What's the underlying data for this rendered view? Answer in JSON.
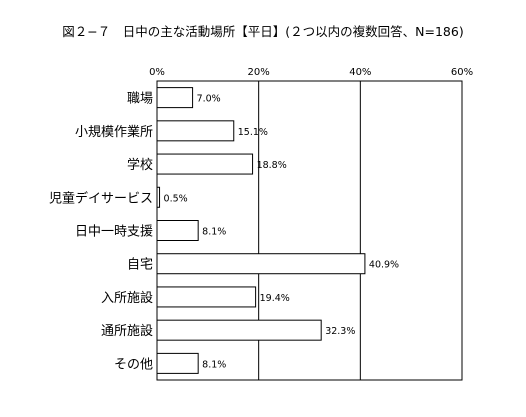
{
  "chart_data": {
    "type": "bar",
    "orientation": "horizontal",
    "title": "図２−７　日中の主な活動場所【平日】(２つ以内の複数回答、N=186)",
    "xlabel": "",
    "ylabel": "",
    "xlim": [
      0,
      60
    ],
    "x_ticks": [
      0,
      20,
      40,
      60
    ],
    "x_tick_labels": [
      "0%",
      "20%",
      "40%",
      "60%"
    ],
    "grid": true,
    "categories": [
      "職場",
      "小規模作業所",
      "学校",
      "児童デイサービス",
      "日中一時支援",
      "自宅",
      "入所施設",
      "通所施設",
      "その他"
    ],
    "values": [
      7.0,
      15.1,
      18.8,
      0.5,
      8.1,
      40.9,
      19.4,
      32.3,
      8.1
    ],
    "value_labels": [
      "7.0%",
      "15.1%",
      "18.8%",
      "0.5%",
      "8.1%",
      "40.9%",
      "19.4%",
      "32.3%",
      "8.1%"
    ],
    "bar_fill": "#ffffff",
    "bar_stroke": "#000000"
  }
}
